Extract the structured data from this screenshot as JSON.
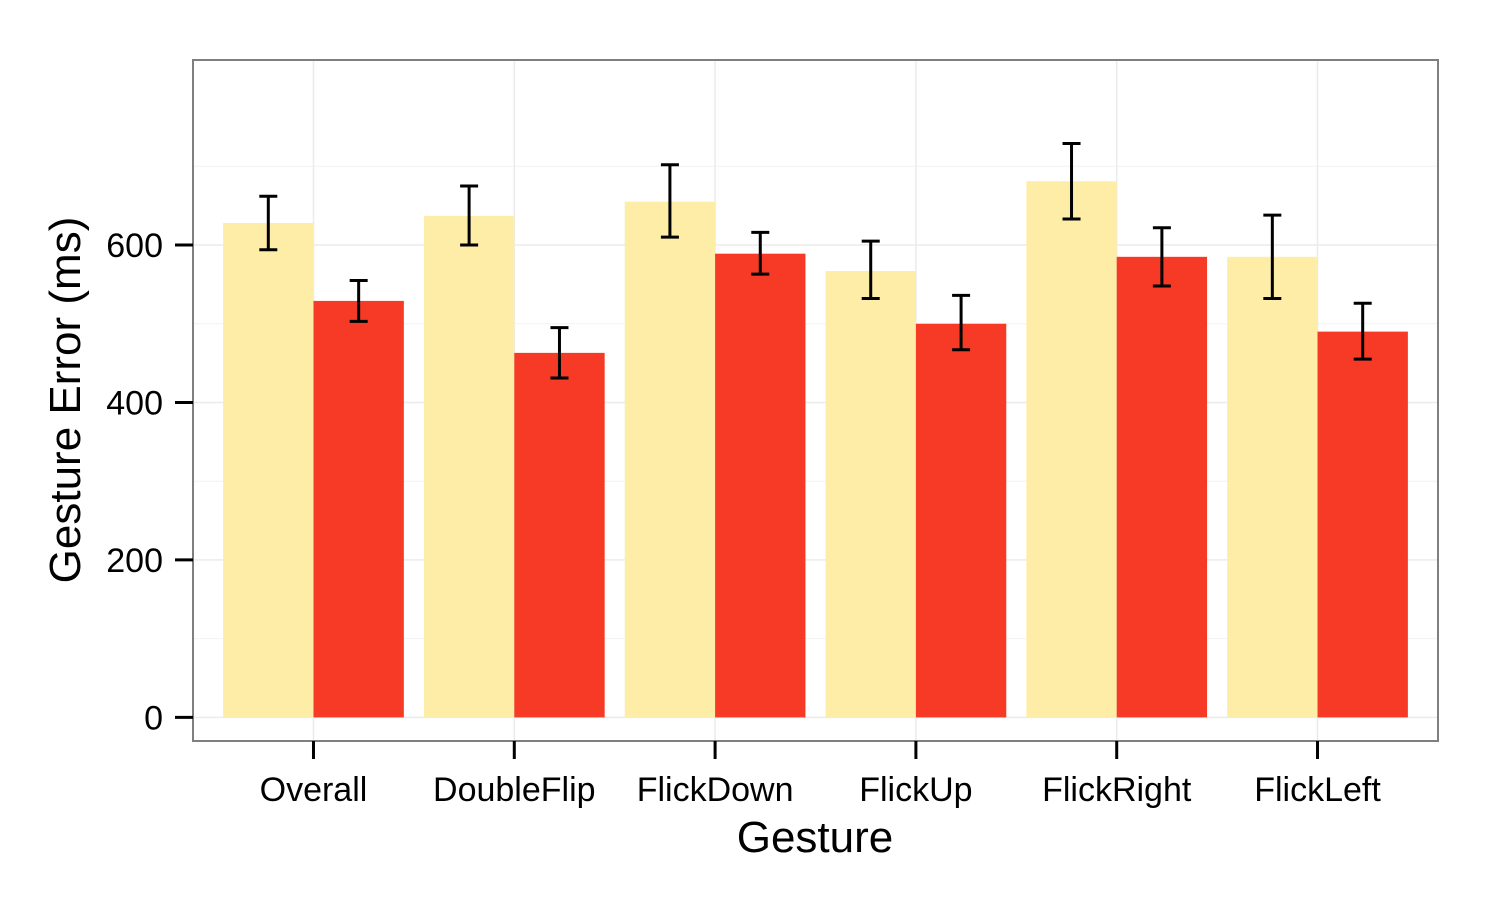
{
  "chart_data": {
    "type": "bar",
    "title": "",
    "xlabel": "Gesture",
    "ylabel": "Gesture Error (ms)",
    "categories": [
      "Overall",
      "DoubleFlip",
      "FlickDown",
      "FlickUp",
      "FlickRight",
      "FlickLeft"
    ],
    "series": [
      {
        "color": "#FDEDA7",
        "values": [
          628,
          637,
          655,
          567,
          681,
          585
        ],
        "err_low": [
          594,
          600,
          610,
          532,
          633,
          532
        ],
        "err_high": [
          662,
          675,
          702,
          605,
          729,
          638
        ]
      },
      {
        "color": "#F63A25",
        "values": [
          529,
          463,
          589,
          500,
          585,
          490
        ],
        "err_low": [
          503,
          431,
          563,
          467,
          548,
          455
        ],
        "err_high": [
          555,
          495,
          616,
          536,
          622,
          526
        ]
      }
    ],
    "ylim": [
      -30,
      835
    ],
    "yticks": [
      0,
      200,
      400,
      600
    ],
    "grid": true,
    "legend": "none"
  }
}
